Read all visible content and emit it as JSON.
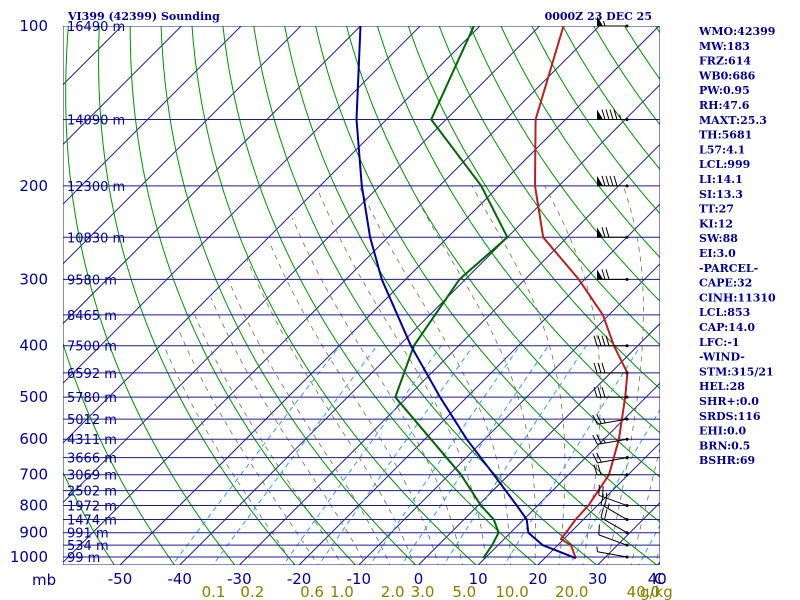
{
  "chart_data": {
    "type": "skew-t sounding",
    "title": "VI399 (42399) Sounding",
    "valid_time": "0000Z 23 DEC 25",
    "y_axis_unit": "mb",
    "x_axis_unit": "C",
    "mixing_ratio_unit": "g/kg",
    "pressure_ticks": [
      100,
      200,
      300,
      400,
      500,
      600,
      700,
      800,
      900,
      1000
    ],
    "temperature_ticks": [
      -50,
      -40,
      -30,
      -20,
      -10,
      0,
      10,
      20,
      30,
      40
    ],
    "mixing_ratio_labels": [
      {
        "label": "0.1",
        "temp_1000": -35.0
      },
      {
        "label": "0.2",
        "temp_1000": -28.5
      },
      {
        "label": "0.6",
        "temp_1000": -18.5
      },
      {
        "label": "1.0",
        "temp_1000": -13.5
      },
      {
        "label": "2.0",
        "temp_1000": -5.0
      },
      {
        "label": "3.0",
        "temp_1000": 0.0
      },
      {
        "label": "5.0",
        "temp_1000": 7.0
      },
      {
        "label": "10.0",
        "temp_1000": 15.0
      },
      {
        "label": "20.0",
        "temp_1000": 25.0
      },
      {
        "label": "40.0",
        "temp_1000": 37.0
      }
    ],
    "height_labels": [
      {
        "label": "16490 m",
        "p": 100
      },
      {
        "label": "14090 m",
        "p": 150
      },
      {
        "label": "12300 m",
        "p": 200
      },
      {
        "label": "10830 m",
        "p": 250
      },
      {
        "label": "9580 m",
        "p": 300
      },
      {
        "label": "8465 m",
        "p": 350
      },
      {
        "label": "7500 m",
        "p": 400
      },
      {
        "label": "6592 m",
        "p": 450
      },
      {
        "label": "5780 m",
        "p": 500
      },
      {
        "label": "5012 m",
        "p": 550
      },
      {
        "label": "4311 m",
        "p": 600
      },
      {
        "label": "3666 m",
        "p": 650
      },
      {
        "label": "3069 m",
        "p": 700
      },
      {
        "label": "2502 m",
        "p": 750
      },
      {
        "label": "1972 m",
        "p": 800
      },
      {
        "label": "1474 m",
        "p": 850
      },
      {
        "label": "991 m",
        "p": 900
      },
      {
        "label": "534 m",
        "p": 950
      },
      {
        "label": "99 m",
        "p": 1000
      }
    ],
    "series": [
      {
        "name": "temperature",
        "color": "#b22222",
        "points": [
          [
            1005,
            25.2
          ],
          [
            950,
            22.2
          ],
          [
            925,
            19.5
          ],
          [
            900,
            19.3
          ],
          [
            850,
            18.7
          ],
          [
            800,
            18.5
          ],
          [
            700,
            16.8
          ],
          [
            600,
            12.5
          ],
          [
            500,
            6.5
          ],
          [
            450,
            2.8
          ],
          [
            400,
            -4.0
          ],
          [
            350,
            -11.0
          ],
          [
            300,
            -21.0
          ],
          [
            250,
            -34.0
          ],
          [
            200,
            -44.0
          ],
          [
            150,
            -55.0
          ],
          [
            100,
            -66.0
          ]
        ]
      },
      {
        "name": "dewpoint",
        "color": "#006400",
        "points": [
          [
            1005,
            9.7
          ],
          [
            950,
            9.0
          ],
          [
            900,
            8.0
          ],
          [
            850,
            5.0
          ],
          [
            800,
            0.5
          ],
          [
            700,
            -8.0
          ],
          [
            600,
            -19.0
          ],
          [
            500,
            -32.0
          ],
          [
            400,
            -37.5
          ],
          [
            300,
            -41.0
          ],
          [
            250,
            -40.0
          ],
          [
            200,
            -53.0
          ],
          [
            150,
            -72.5
          ],
          [
            100,
            -81.0
          ]
        ]
      },
      {
        "name": "parcel",
        "color": "#00008b",
        "points": [
          [
            1005,
            25.2
          ],
          [
            950,
            17.5
          ],
          [
            900,
            13.0
          ],
          [
            850,
            10.5
          ],
          [
            800,
            6.5
          ],
          [
            700,
            -2.5
          ],
          [
            600,
            -13.0
          ],
          [
            500,
            -24.5
          ],
          [
            400,
            -38.0
          ],
          [
            300,
            -54.0
          ],
          [
            250,
            -63.0
          ],
          [
            200,
            -73.0
          ],
          [
            150,
            -85.0
          ],
          [
            100,
            -100.0
          ]
        ]
      }
    ]
  },
  "header": {
    "title": "VI399 (42399) Sounding",
    "valid_time": "0000Z 23 DEC 25"
  },
  "axes": {
    "pressure_unit": "mb",
    "temp_unit": "C",
    "mixing_ratio_unit": "g/kg"
  },
  "indices": [
    "WMO:42399",
    "MW:183",
    "FRZ:614",
    "WB0:686",
    "PW:0.95",
    "RH:47.6",
    "MAXT:25.3",
    "TH:5681",
    "L57:4.1",
    "LCL:999",
    "LI:14.1",
    "SI:13.3",
    "TT:27",
    "KI:12",
    "SW:88",
    "EI:3.0",
    "-PARCEL-",
    "CAPE:32",
    "CINH:11310",
    "LCL:853",
    "CAP:14.0",
    "LFC:-1",
    "-WIND-",
    "STM:315/21",
    "HEL:28",
    "SHR+:0.0",
    "SRDS:116",
    "EHI:0.0",
    "BRN:0.5",
    "BSHR:69"
  ],
  "colors": {
    "isobar": "#1c1c8c",
    "isotherm": "#1c1c8c",
    "dry_adiabat": "#009000",
    "moist_adiabat": "#707050",
    "mixing_ratio": "#3aa0d8",
    "text_blue": "#00008b",
    "text_gold": "#8b7d00"
  },
  "winds": [
    {
      "p": 1000,
      "dir": 280,
      "spd": 5
    },
    {
      "p": 950,
      "dir": 290,
      "spd": 10
    },
    {
      "p": 900,
      "dir": 300,
      "spd": 20
    },
    {
      "p": 850,
      "dir": 300,
      "spd": 25
    },
    {
      "p": 800,
      "dir": 290,
      "spd": 25
    },
    {
      "p": 700,
      "dir": 270,
      "spd": 20
    },
    {
      "p": 650,
      "dir": 260,
      "spd": 20
    },
    {
      "p": 600,
      "dir": 260,
      "spd": 25
    },
    {
      "p": 550,
      "dir": 260,
      "spd": 25
    },
    {
      "p": 500,
      "dir": 270,
      "spd": 30
    },
    {
      "p": 450,
      "dir": 270,
      "spd": 30
    },
    {
      "p": 400,
      "dir": 270,
      "spd": 40
    },
    {
      "p": 300,
      "dir": 270,
      "spd": 70
    },
    {
      "p": 250,
      "dir": 270,
      "spd": 70
    },
    {
      "p": 200,
      "dir": 270,
      "spd": 90
    },
    {
      "p": 150,
      "dir": 270,
      "spd": 95
    },
    {
      "p": 100,
      "dir": 270,
      "spd": 55
    }
  ]
}
